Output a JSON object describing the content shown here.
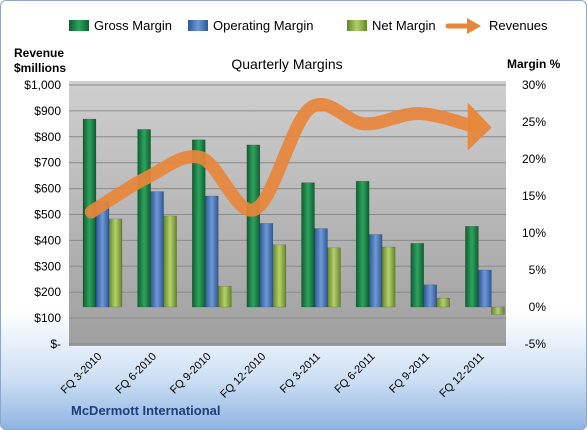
{
  "chart_data": {
    "type": "bar",
    "title": "Quarterly Margins",
    "footer": "McDermott International",
    "y_left_label": [
      "Revenue",
      "$millions"
    ],
    "y_right_label": "Margin %",
    "y_left_ticks": [
      "$-",
      "$100",
      "$200",
      "$300",
      "$400",
      "$500",
      "$600",
      "$700",
      "$800",
      "$900",
      "$1,000"
    ],
    "y_right_ticks": [
      "-5%",
      "0%",
      "5%",
      "10%",
      "15%",
      "20%",
      "25%",
      "30%"
    ],
    "y_left_range": [
      0,
      1000
    ],
    "y_right_range": [
      -5,
      30
    ],
    "categories": [
      "FQ 3-2010",
      "FQ 6-2010",
      "FQ 9-2010",
      "FQ 12-2010",
      "FQ 3-2011",
      "FQ 6-2011",
      "FQ 9-2011",
      "FQ 12-2011"
    ],
    "series": [
      {
        "name": "Gross Margin",
        "axis": "right",
        "color": "#1e8a4a",
        "values": [
          25.4,
          24.0,
          22.6,
          21.9,
          16.8,
          17.0,
          8.6,
          10.9
        ]
      },
      {
        "name": "Operating Margin",
        "axis": "right",
        "color": "#4f79bd",
        "values": [
          14.3,
          15.6,
          15.0,
          11.3,
          10.6,
          9.8,
          3.0,
          5.0
        ]
      },
      {
        "name": "Net Margin",
        "axis": "right",
        "color": "#92b54a",
        "values": [
          11.9,
          12.3,
          2.8,
          8.4,
          8.0,
          8.1,
          1.2,
          -1.0
        ]
      },
      {
        "name": "Revenues",
        "axis": "left",
        "color": "#e8863a",
        "type": "line",
        "values": [
          510,
          640,
          720,
          520,
          910,
          850,
          890,
          840
        ]
      }
    ],
    "legend_position": "top",
    "grid": true
  }
}
